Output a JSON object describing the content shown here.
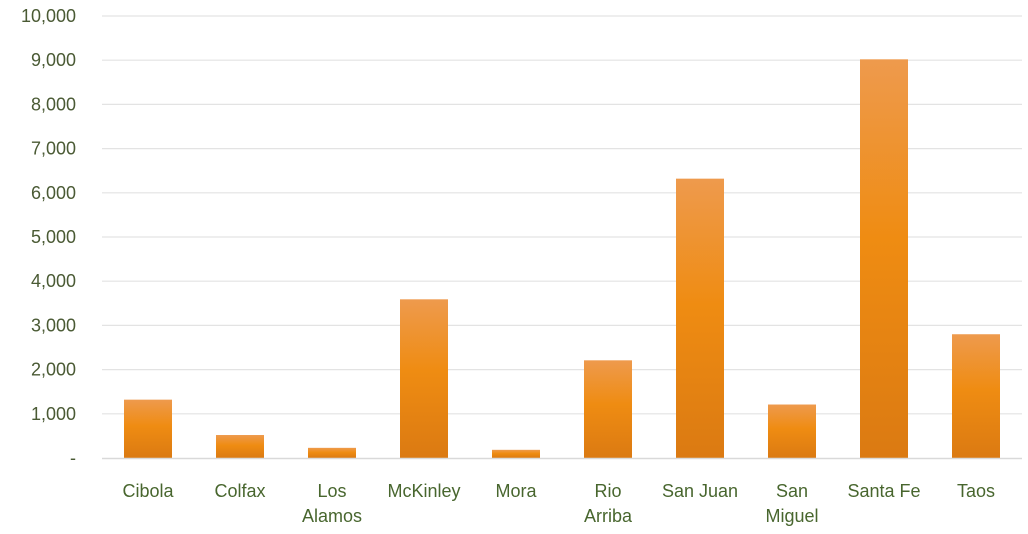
{
  "chart_data": {
    "type": "bar",
    "title": "",
    "xlabel": "",
    "ylabel": "",
    "categories": [
      [
        "Cibola"
      ],
      [
        "Colfax"
      ],
      [
        "Los",
        "Alamos"
      ],
      [
        "McKinley"
      ],
      [
        "Mora"
      ],
      [
        "Rio",
        "Arriba"
      ],
      [
        "San Juan"
      ],
      [
        "San",
        "Miguel"
      ],
      [
        "Santa Fe"
      ],
      [
        "Taos"
      ]
    ],
    "values": [
      1320,
      520,
      230,
      3590,
      185,
      2210,
      6320,
      1210,
      9020,
      2800
    ],
    "ylim": [
      0,
      10000
    ],
    "y_ticks": [
      {
        "value": 0,
        "label": "-"
      },
      {
        "value": 1000,
        "label": "1,000"
      },
      {
        "value": 2000,
        "label": "2,000"
      },
      {
        "value": 3000,
        "label": "3,000"
      },
      {
        "value": 4000,
        "label": "4,000"
      },
      {
        "value": 5000,
        "label": "5,000"
      },
      {
        "value": 6000,
        "label": "6,000"
      },
      {
        "value": 7000,
        "label": "7,000"
      },
      {
        "value": 8000,
        "label": "8,000"
      },
      {
        "value": 9000,
        "label": "9,000"
      },
      {
        "value": 10000,
        "label": "10,000"
      }
    ],
    "grid": true,
    "legend": "none",
    "colors": {
      "bar_top": "#ee9a4d",
      "bar_mid": "#ef8c12",
      "bar_bottom": "#db7a12",
      "y_tick_text": "#4a5a34",
      "x_tick_text": "#48662e",
      "gridline": "#e3e3e3",
      "axis_line": "#d9d9d9"
    }
  }
}
